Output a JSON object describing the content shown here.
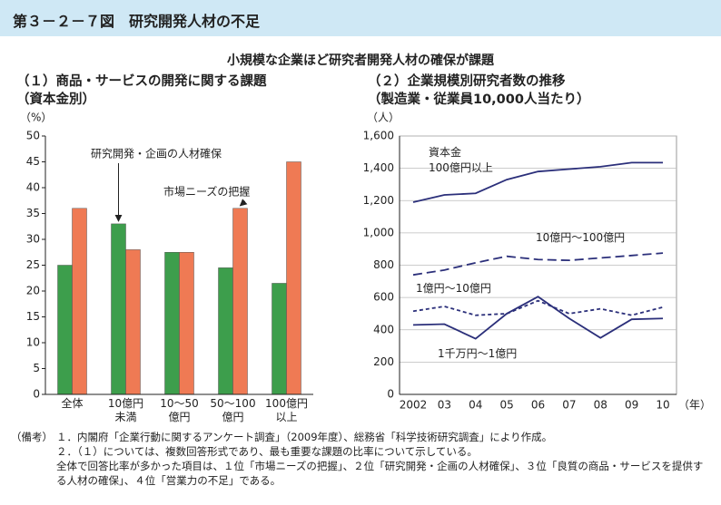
{
  "header": {
    "title": "第３－２－７図　研究開発人材の不足",
    "subtitle": "小規模な企業ほど研究者開発人材の確保が課題"
  },
  "chart_data": [
    {
      "type": "bar",
      "title": "（１）商品・サービスの開発に関する課題\n（資本金別）",
      "y_label": "（%）",
      "categories": [
        "全体",
        "10億円\n未満",
        "10～50\n億円",
        "50～100\n億円",
        "100億円\n以上"
      ],
      "series": [
        {
          "name": "研究開発・企画の人材確保",
          "color": "#3d9e4c",
          "values": [
            25,
            33,
            27.5,
            24.5,
            21.5
          ]
        },
        {
          "name": "市場ニーズの把握",
          "color": "#ef7a54",
          "values": [
            36,
            28,
            27.5,
            36,
            45
          ]
        }
      ],
      "ylim": [
        0,
        50
      ],
      "yticks": [
        0,
        5,
        10,
        15,
        20,
        25,
        30,
        35,
        40,
        45,
        50
      ],
      "grid": false
    },
    {
      "type": "line",
      "title": "（２）企業規模別研究者数の推移\n（製造業・従業員10,000人当たり）",
      "y_label": "（人）",
      "x_label": "（年）",
      "categories": [
        "2002",
        "03",
        "04",
        "05",
        "06",
        "07",
        "08",
        "09",
        "10"
      ],
      "series": [
        {
          "name": "資本金\n100億円以上",
          "color": "#2b2f7a",
          "dash": "solid",
          "values": [
            1190,
            1235,
            1245,
            1330,
            1380,
            1395,
            1410,
            1435,
            1435
          ]
        },
        {
          "name": "10億円～100億円",
          "color": "#2b2f7a",
          "dash": "long",
          "values": [
            740,
            770,
            815,
            855,
            835,
            830,
            845,
            860,
            875
          ]
        },
        {
          "name": "1億円～10億円",
          "color": "#2b2f7a",
          "dash": "short",
          "values": [
            515,
            545,
            490,
            500,
            580,
            500,
            530,
            490,
            540
          ]
        },
        {
          "name": "1千万円～1億円",
          "color": "#2b2f7a",
          "dash": "solid",
          "values": [
            430,
            435,
            345,
            500,
            605,
            470,
            350,
            465,
            470
          ]
        }
      ],
      "ylim": [
        0,
        1600
      ],
      "yticks": [
        0,
        200,
        400,
        600,
        800,
        {
          "value": 1000,
          "label": "1,000"
        },
        {
          "value": 1200,
          "label": "1,200"
        },
        {
          "value": 1400,
          "label": "1,400"
        },
        {
          "value": 1600,
          "label": "1,600"
        }
      ],
      "grid": true
    }
  ],
  "notes": {
    "label": "（備考）",
    "items": [
      "１．内閣府「企業行動に関するアンケート調査」（2009年度）、総務省「科学技術研究調査」により作成。",
      "２．（１）については、複数回答形式であり、最も重要な課題の比率について示している。\n全体で回答比率が多かった項目は、１位「市場ニーズの把握」、２位「研究開発・企画の人材確保」、３位「良質の商品・サービスを提供する人材の確保」、４位「営業力の不足」である。"
    ]
  }
}
